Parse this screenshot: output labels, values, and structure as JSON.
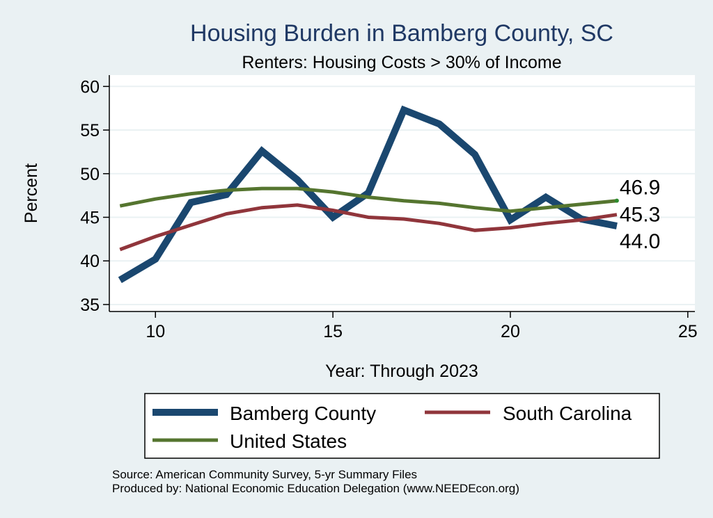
{
  "chart_data": {
    "type": "line",
    "title": "Housing Burden in Bamberg County, SC",
    "subtitle": "Renters: Housing Costs > 30% of Income",
    "xlabel": "Year: Through 2023",
    "ylabel": "Percent",
    "xlim": [
      8.7,
      25.2
    ],
    "ylim": [
      34.2,
      61.3
    ],
    "xticks": [
      10,
      15,
      20,
      25
    ],
    "yticks": [
      35,
      40,
      45,
      50,
      55,
      60
    ],
    "grid": true,
    "legend_position": "bottom",
    "series": [
      {
        "name": "Bamberg County",
        "color": "#1a476f",
        "x": [
          9,
          10,
          11,
          12,
          13,
          14,
          15,
          16,
          17,
          18,
          19,
          20,
          21,
          22,
          23
        ],
        "values": [
          37.8,
          40.2,
          46.7,
          47.6,
          52.6,
          49.3,
          45.0,
          47.8,
          57.3,
          55.7,
          52.2,
          44.7,
          47.3,
          44.8,
          44.0
        ],
        "end_label": "44.0"
      },
      {
        "name": "South Carolina",
        "color": "#90353b",
        "x": [
          9,
          10,
          11,
          12,
          13,
          14,
          15,
          16,
          17,
          18,
          19,
          20,
          21,
          22,
          23
        ],
        "values": [
          41.3,
          42.8,
          44.1,
          45.4,
          46.1,
          46.4,
          45.8,
          45.0,
          44.8,
          44.3,
          43.5,
          43.8,
          44.3,
          44.7,
          45.3
        ],
        "end_label": "45.3"
      },
      {
        "name": "United States",
        "color": "#55752f",
        "x": [
          9,
          10,
          11,
          12,
          13,
          14,
          15,
          16,
          17,
          18,
          19,
          20,
          21,
          22,
          23
        ],
        "values": [
          46.3,
          47.1,
          47.7,
          48.1,
          48.3,
          48.3,
          47.9,
          47.3,
          46.9,
          46.6,
          46.1,
          45.7,
          46.1,
          46.5,
          46.9
        ],
        "end_label": "46.9"
      }
    ],
    "notes": [
      "Source: American Community Survey, 5-yr Summary Files",
      "Produced by: National Economic Education Delegation (www.NEEDEcon.org)"
    ]
  }
}
